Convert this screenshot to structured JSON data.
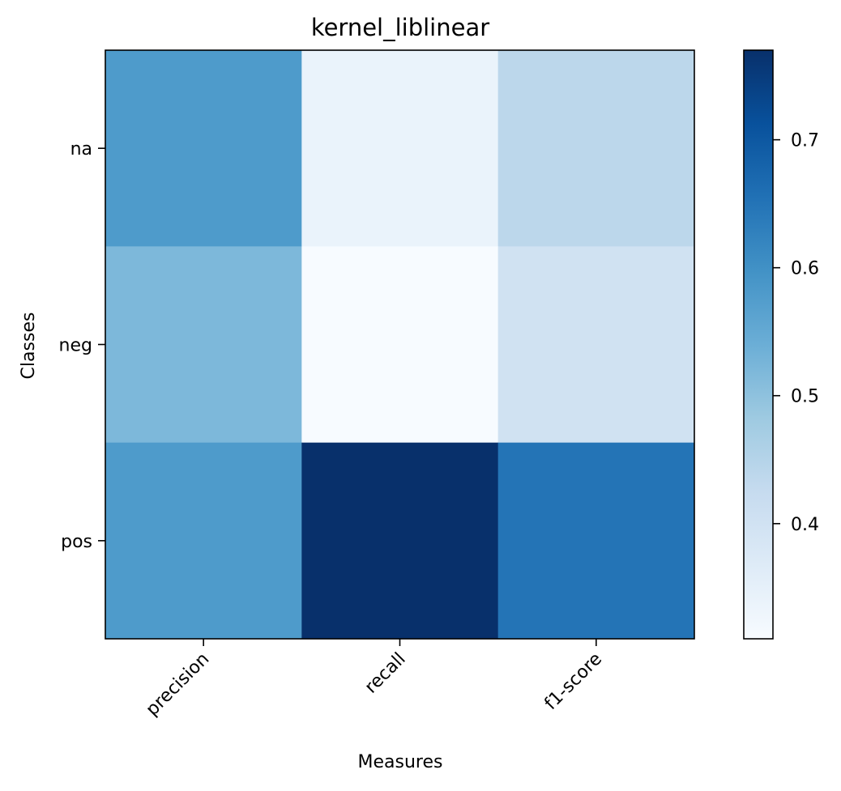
{
  "chart_data": {
    "type": "heatmap",
    "title": "kernel_liblinear",
    "xlabel": "Measures",
    "ylabel": "Classes",
    "x_categories": [
      "precision",
      "recall",
      "f1-score"
    ],
    "y_categories": [
      "na",
      "neg",
      "pos"
    ],
    "values": [
      [
        0.58,
        0.34,
        0.44
      ],
      [
        0.52,
        0.31,
        0.4
      ],
      [
        0.58,
        0.77,
        0.65
      ]
    ],
    "colormap": "Blues",
    "colorbar": {
      "min": 0.31,
      "max": 0.77,
      "ticks": [
        0.4,
        0.5,
        0.6,
        0.7
      ],
      "tick_labels": [
        "0.4",
        "0.5",
        "0.6",
        "0.7"
      ]
    },
    "grid": false,
    "legend": "colorbar-right"
  }
}
